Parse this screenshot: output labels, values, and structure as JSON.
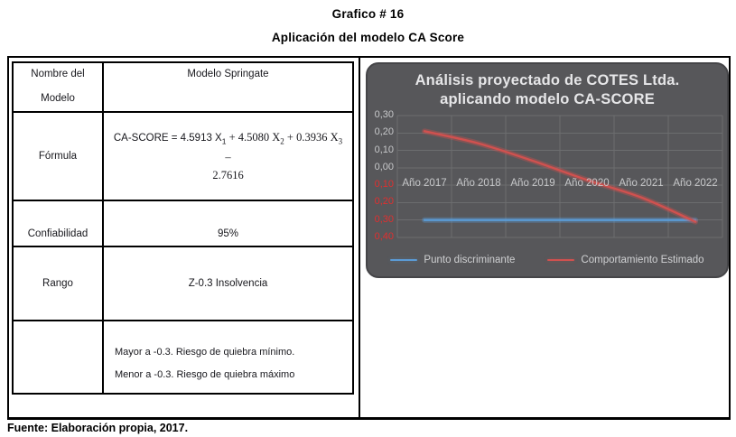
{
  "page": {
    "title": "Grafico # 16",
    "subtitle": "Aplicación del modelo CA Score",
    "footer": "Fuente: Elaboración propia, 2017."
  },
  "table": {
    "nombre_label_line1": "Nombre del",
    "nombre_label_line2": "Modelo",
    "nombre_value": "Modelo Springate",
    "formula_label": "Fórmula",
    "formula": {
      "sans1": "CA-SCORE = 4.5913 X",
      "sub1": "1",
      "serif1": " + 4.5080 X",
      "sub2": "2",
      "serif2": " + 0.3936 X",
      "sub3": "3",
      "serif3": " –",
      "line2": "2.7616"
    },
    "confiabilidad_label": "Confiabilidad",
    "confiabilidad_value": "95%",
    "rango_label": "Rango",
    "rango_value": "Z-0.3  Insolvencia",
    "criterio_line1": "Mayor a -0.3. Riesgo de quiebra mínimo.",
    "criterio_line2": "Menor a -0.3. Riesgo de quiebra máximo"
  },
  "chart_data": {
    "type": "line",
    "title_line1": "Análisis proyectado de COTES Ltda.",
    "title_line2": "aplicando modelo CA-SCORE",
    "categories": [
      "Año 2017",
      "Año 2018",
      "Año 2019",
      "Año 2020",
      "Año 2021",
      "Año 2022"
    ],
    "series": [
      {
        "name": "Punto discriminante",
        "color": "#5b9bd5",
        "glow": "rgba(91,155,213,0.35)",
        "values": [
          -0.3,
          -0.3,
          -0.3,
          -0.3,
          -0.3,
          -0.3
        ],
        "smooth": false
      },
      {
        "name": "Comportamiento Estimado",
        "color": "#d0514f",
        "glow": "rgba(214,80,77,0.35)",
        "values": [
          0.21,
          0.14,
          0.04,
          -0.07,
          -0.17,
          -0.31
        ],
        "smooth": true
      }
    ],
    "ylim": [
      -0.4,
      0.3
    ],
    "ytick_step": 0.1,
    "ytick_labels": [
      {
        "text": "0,30",
        "neg": false
      },
      {
        "text": "0,20",
        "neg": false
      },
      {
        "text": "0,10",
        "neg": false
      },
      {
        "text": "0,00",
        "neg": false
      },
      {
        "text": "0,10",
        "neg": true
      },
      {
        "text": "0,20",
        "neg": true
      },
      {
        "text": "0,30",
        "neg": true
      },
      {
        "text": "0,40",
        "neg": true
      }
    ],
    "grid": true,
    "legend_position": "bottom",
    "colors": {
      "bg": "#57575a",
      "grid": "#6c6d6f",
      "axis_text": "#c7c8ca",
      "negative_text": "#e02f2f",
      "title": "#e6e6e8"
    }
  }
}
